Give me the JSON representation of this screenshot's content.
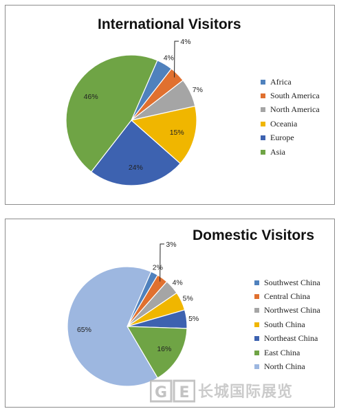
{
  "chart_data": [
    {
      "type": "pie",
      "title": "International Visitors",
      "legend_position": "right",
      "slices": [
        {
          "name": "Africa",
          "value": 4,
          "label": "4%",
          "color": "#4f81bd"
        },
        {
          "name": "South America",
          "value": 4,
          "label": "4%",
          "color": "#e0702f"
        },
        {
          "name": "North America",
          "value": 7,
          "label": "7%",
          "color": "#a5a5a5"
        },
        {
          "name": "Oceania",
          "value": 15,
          "label": "15%",
          "color": "#f0b600"
        },
        {
          "name": "Europe",
          "value": 24,
          "label": "24%",
          "color": "#3d62b0"
        },
        {
          "name": "Asia",
          "value": 46,
          "label": "46%",
          "color": "#6fa445"
        }
      ]
    },
    {
      "type": "pie",
      "title": "Domestic Visitors",
      "legend_position": "right",
      "slices": [
        {
          "name": "Southwest China",
          "value": 2,
          "label": "2%",
          "color": "#4f81bd"
        },
        {
          "name": "Central China",
          "value": 3,
          "label": "3%",
          "color": "#e0702f"
        },
        {
          "name": "Northwest China",
          "value": 4,
          "label": "4%",
          "color": "#a5a5a5"
        },
        {
          "name": "South China",
          "value": 5,
          "label": "5%",
          "color": "#f0b600"
        },
        {
          "name": "Northeast China",
          "value": 5,
          "label": "5%",
          "color": "#3d62b0"
        },
        {
          "name": "East China",
          "value": 16,
          "label": "16%",
          "color": "#6fa445"
        },
        {
          "name": "North China",
          "value": 65,
          "label": "65%",
          "color": "#9db7e0"
        }
      ]
    }
  ],
  "watermark": {
    "text": "长城国际展览",
    "logo_letters": "GE"
  }
}
